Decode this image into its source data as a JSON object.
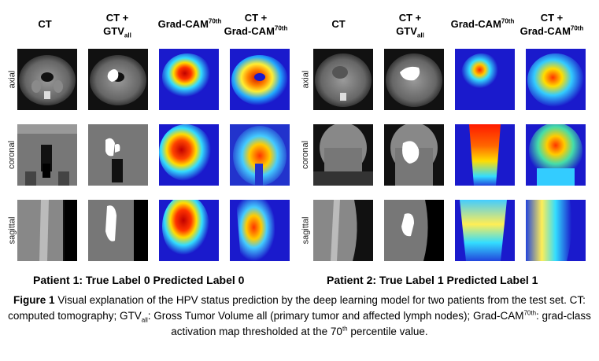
{
  "columns": {
    "ct": "CT",
    "ct_gtv_line1": "CT +",
    "gtv_base": "GTV",
    "gtv_sub": "all",
    "gradcam_base": "Grad-CAM",
    "gradcam_sup": "70th",
    "ct_gradcam_line1": "CT +"
  },
  "rows": [
    "axial",
    "coronal",
    "sagittal"
  ],
  "patients": [
    {
      "label": "Patient 1: True Label 0 Predicted Label 0"
    },
    {
      "label": "Patient 2: True Label 1 Predicted Label 1"
    }
  ],
  "caption": {
    "figure_label": "Figure 1",
    "text1": " Visual explanation of the HPV status prediction by the deep learning model for two patients from the test set.  CT: computed tomography;  GTV",
    "gtv_sub": "all",
    "text2": ": Gross Tumor Volume all (primary tumor and affected lymph nodes); Grad-CAM",
    "gradcam_sup": "70th",
    "text3": ": grad-class activation map thresholded at the 70",
    "th_sup": "th",
    "text4": " percentile value."
  },
  "colors": {
    "background": "#ffffff",
    "heatmap_low": "#1a1acc",
    "heatmap_high": "#cc1111"
  }
}
